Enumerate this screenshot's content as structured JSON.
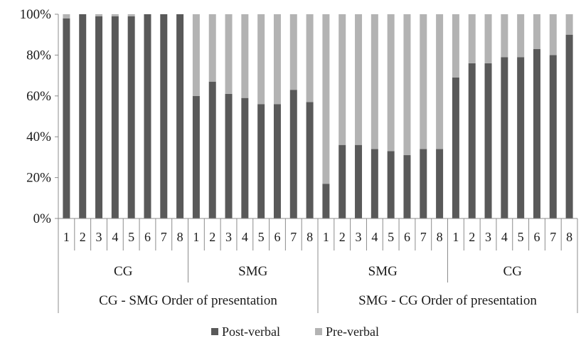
{
  "chart_data": {
    "type": "bar",
    "stacked": true,
    "y_format": "percent",
    "ylim": [
      0,
      100
    ],
    "y_ticks": [
      "0%",
      "20%",
      "40%",
      "60%",
      "80%",
      "100%"
    ],
    "categories": [
      "1",
      "2",
      "3",
      "4",
      "5",
      "6",
      "7",
      "8",
      "1",
      "2",
      "3",
      "4",
      "5",
      "6",
      "7",
      "8",
      "1",
      "2",
      "3",
      "4",
      "5",
      "6",
      "7",
      "8",
      "1",
      "2",
      "3",
      "4",
      "5",
      "6",
      "7",
      "8"
    ],
    "groups": [
      {
        "label": "CG",
        "start": 0,
        "end": 7
      },
      {
        "label": "SMG",
        "start": 8,
        "end": 15
      },
      {
        "label": "SMG",
        "start": 16,
        "end": 23
      },
      {
        "label": "CG",
        "start": 24,
        "end": 31
      }
    ],
    "supergroups": [
      {
        "label": "CG - SMG Order of presentation",
        "start": 0,
        "end": 15
      },
      {
        "label": "SMG - CG Order of presentation",
        "start": 16,
        "end": 31
      }
    ],
    "series": [
      {
        "name": "Post-verbal",
        "color": "#595959",
        "values": [
          98,
          100,
          99,
          99,
          99,
          100,
          100,
          100,
          60,
          67,
          61,
          59,
          56,
          56,
          63,
          57,
          17,
          36,
          36,
          34,
          33,
          31,
          34,
          34,
          69,
          76,
          76,
          79,
          79,
          83,
          80,
          90
        ]
      },
      {
        "name": "Pre-verbal",
        "color": "#b3b3b3",
        "values": [
          2,
          0,
          1,
          1,
          1,
          0,
          0,
          0,
          40,
          33,
          39,
          41,
          44,
          44,
          37,
          43,
          83,
          64,
          64,
          66,
          67,
          69,
          66,
          66,
          31,
          24,
          24,
          21,
          21,
          17,
          20,
          10
        ]
      }
    ],
    "legend_position": "bottom",
    "grid": false
  }
}
